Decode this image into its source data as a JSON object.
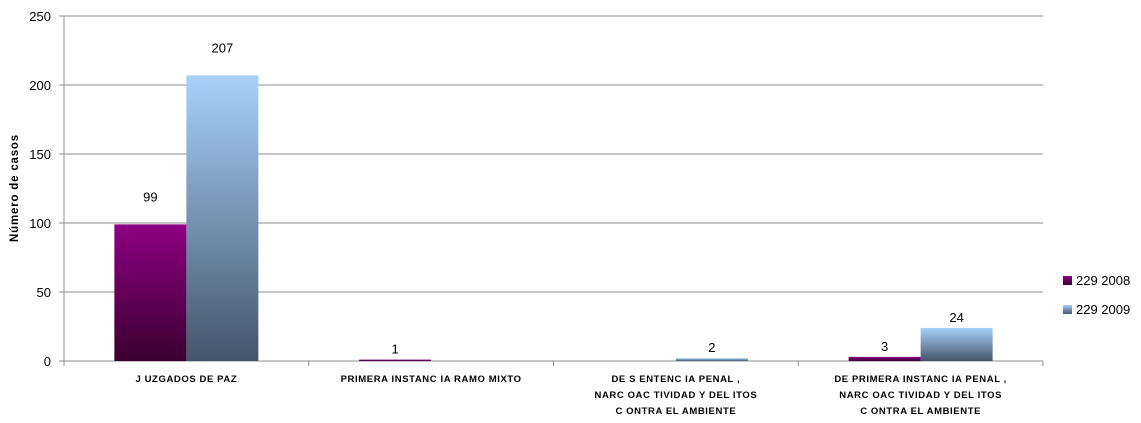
{
  "chart_data": {
    "type": "bar",
    "title": "",
    "xlabel": "",
    "ylabel": "Número de  casos",
    "ylim": [
      0,
      250
    ],
    "yticks": [
      0,
      50,
      100,
      150,
      200,
      250
    ],
    "grid": true,
    "legend_position": "right",
    "categories": [
      [
        "J UZGADOS DE PAZ"
      ],
      [
        "PRIMERA INSTANC IA RAMO MIXTO"
      ],
      [
        "DE S ENTENC IA PENAL ,",
        "NARC OAC TIVIDAD Y DEL ITOS",
        "C ONTRA EL AMBIENTE"
      ],
      [
        "DE PRIMERA  INSTANC IA PENAL ,",
        "NARC OAC TIVIDAD Y DEL ITOS",
        "C ONTRA EL AMBIENTE"
      ]
    ],
    "series": [
      {
        "name": "229 2008",
        "values": [
          99,
          1,
          0,
          3
        ],
        "labels": [
          "99",
          "1",
          "",
          "3"
        ],
        "color": "#6a0060"
      },
      {
        "name": "229 2009",
        "values": [
          207,
          0,
          2,
          24
        ],
        "labels": [
          "207",
          "",
          "2",
          "24"
        ],
        "color": "#7fb0de"
      }
    ]
  }
}
